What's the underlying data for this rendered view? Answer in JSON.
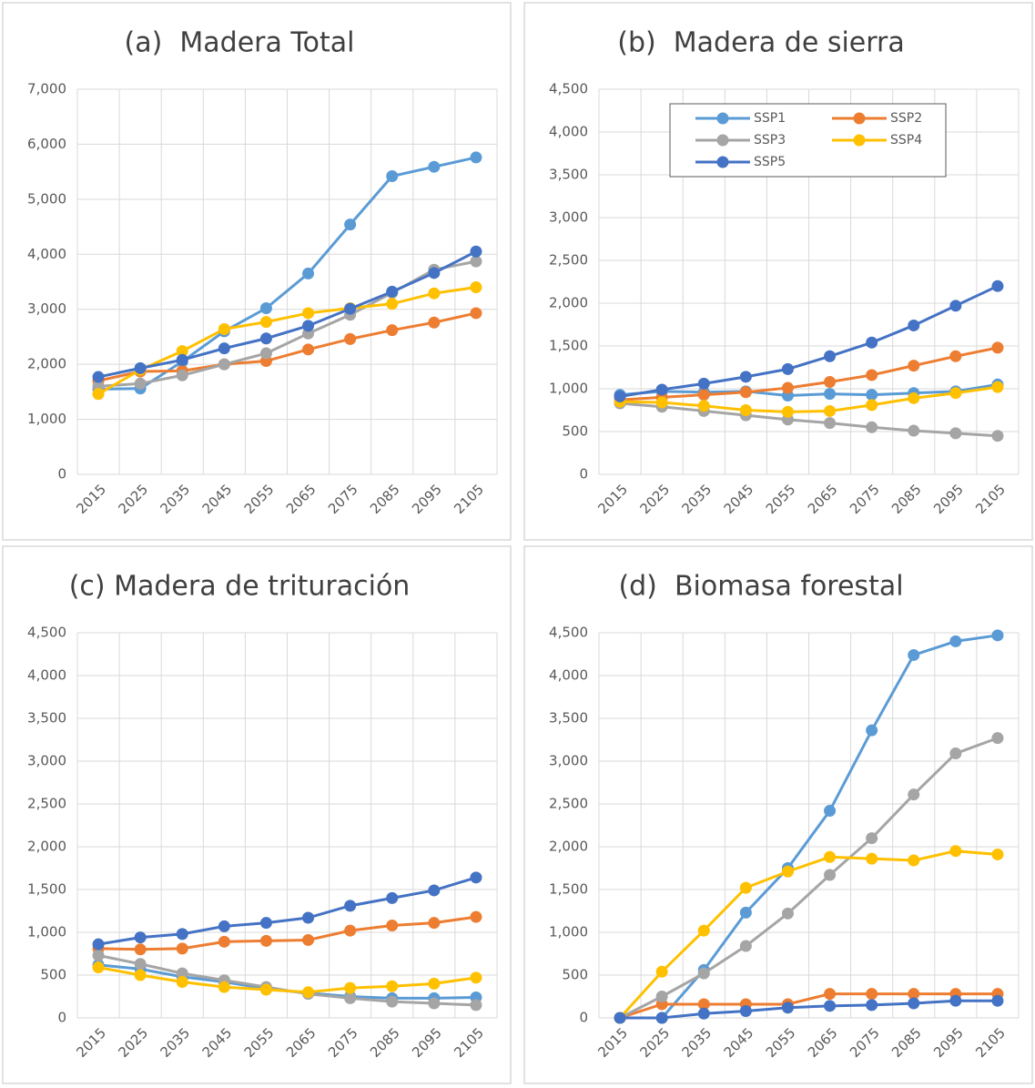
{
  "chart_data": [
    {
      "type": "line",
      "title": "(a)  Madera Total",
      "categories": [
        "2015",
        "2025",
        "2035",
        "2045",
        "2055",
        "2065",
        "2075",
        "2085",
        "2095",
        "2105"
      ],
      "ylim": [
        0,
        7000
      ],
      "yticks": [
        0,
        {
          "value": 1000,
          "label": "1,000"
        },
        {
          "value": 2000,
          "label": "2,000"
        },
        {
          "value": 3000,
          "label": "3,000"
        },
        {
          "value": 4000,
          "label": "4,000"
        },
        {
          "value": 5000,
          "label": "5,000"
        },
        {
          "value": 6000,
          "label": "6,000"
        },
        {
          "value": 7000,
          "label": "7,000"
        }
      ],
      "grid": true,
      "series": [
        {
          "color": "#5b9bd5",
          "values": [
            1550,
            1560,
            2050,
            2600,
            3020,
            3650,
            4540,
            5420,
            5590,
            5760
          ]
        },
        {
          "color": "#ed7d31",
          "values": [
            1700,
            1870,
            1880,
            2000,
            2060,
            2270,
            2460,
            2620,
            2760,
            2930
          ]
        },
        {
          "color": "#a5a5a5",
          "values": [
            1600,
            1650,
            1800,
            2000,
            2200,
            2560,
            2900,
            3300,
            3720,
            3870
          ]
        },
        {
          "color": "#ffc000",
          "values": [
            1460,
            1900,
            2240,
            2640,
            2770,
            2930,
            3020,
            3100,
            3290,
            3400
          ]
        },
        {
          "color": "#4472c4",
          "values": [
            1770,
            1930,
            2080,
            2290,
            2470,
            2700,
            3010,
            3320,
            3660,
            4050
          ]
        }
      ]
    },
    {
      "type": "line",
      "title": "(b)  Madera de sierra",
      "categories": [
        "2015",
        "2025",
        "2035",
        "2045",
        "2055",
        "2065",
        "2075",
        "2085",
        "2095",
        "2105"
      ],
      "ylim": [
        0,
        4500
      ],
      "yticks": [
        0,
        500,
        {
          "value": 1000,
          "label": "1,000"
        },
        {
          "value": 1500,
          "label": "1,500"
        },
        {
          "value": 2000,
          "label": "2,000"
        },
        {
          "value": 2500,
          "label": "2,500"
        },
        {
          "value": 3000,
          "label": "3,000"
        },
        {
          "value": 3500,
          "label": "3,500"
        },
        {
          "value": 4000,
          "label": "4,000"
        },
        {
          "value": 4500,
          "label": "4,500"
        }
      ],
      "grid": true,
      "legend": "top",
      "series": [
        {
          "name": "SSP1",
          "color": "#5b9bd5",
          "values": [
            930,
            970,
            960,
            970,
            920,
            940,
            930,
            950,
            970,
            1050
          ]
        },
        {
          "name": "SSP2",
          "color": "#ed7d31",
          "values": [
            870,
            900,
            930,
            960,
            1010,
            1080,
            1160,
            1270,
            1380,
            1480
          ]
        },
        {
          "name": "SSP3",
          "color": "#a5a5a5",
          "values": [
            830,
            790,
            740,
            690,
            640,
            600,
            550,
            510,
            480,
            450
          ]
        },
        {
          "name": "SSP4",
          "color": "#ffc000",
          "values": [
            850,
            840,
            800,
            750,
            730,
            740,
            810,
            890,
            950,
            1020
          ]
        },
        {
          "name": "SSP5",
          "color": "#4472c4",
          "values": [
            910,
            990,
            1060,
            1140,
            1230,
            1380,
            1540,
            1740,
            1970,
            2200
          ]
        }
      ]
    },
    {
      "type": "line",
      "title": "(c) Madera de trituración",
      "categories": [
        "2015",
        "2025",
        "2035",
        "2045",
        "2055",
        "2065",
        "2075",
        "2085",
        "2095",
        "2105"
      ],
      "ylim": [
        0,
        4500
      ],
      "yticks": [
        0,
        500,
        {
          "value": 1000,
          "label": "1,000"
        },
        {
          "value": 1500,
          "label": "1,500"
        },
        {
          "value": 2000,
          "label": "2,000"
        },
        {
          "value": 2500,
          "label": "2,500"
        },
        {
          "value": 3000,
          "label": "3,000"
        },
        {
          "value": 3500,
          "label": "3,500"
        },
        {
          "value": 4000,
          "label": "4,000"
        },
        {
          "value": 4500,
          "label": "4,500"
        }
      ],
      "grid": true,
      "series": [
        {
          "color": "#5b9bd5",
          "values": [
            620,
            570,
            480,
            420,
            340,
            290,
            250,
            230,
            230,
            240
          ]
        },
        {
          "color": "#ed7d31",
          "values": [
            810,
            800,
            810,
            890,
            900,
            910,
            1020,
            1080,
            1110,
            1180
          ]
        },
        {
          "color": "#a5a5a5",
          "values": [
            730,
            630,
            520,
            440,
            360,
            280,
            230,
            190,
            170,
            150
          ]
        },
        {
          "color": "#ffc000",
          "values": [
            590,
            500,
            420,
            360,
            330,
            300,
            350,
            370,
            400,
            470
          ]
        },
        {
          "color": "#4472c4",
          "values": [
            860,
            940,
            980,
            1070,
            1110,
            1170,
            1310,
            1400,
            1490,
            1640
          ]
        }
      ]
    },
    {
      "type": "line",
      "title": "(d)  Biomasa forestal",
      "categories": [
        "2015",
        "2025",
        "2035",
        "2045",
        "2055",
        "2065",
        "2075",
        "2085",
        "2095",
        "2105"
      ],
      "ylim": [
        0,
        4500
      ],
      "yticks": [
        0,
        500,
        {
          "value": 1000,
          "label": "1,000"
        },
        {
          "value": 1500,
          "label": "1,500"
        },
        {
          "value": 2000,
          "label": "2,000"
        },
        {
          "value": 2500,
          "label": "2,500"
        },
        {
          "value": 3000,
          "label": "3,000"
        },
        {
          "value": 3500,
          "label": "3,500"
        },
        {
          "value": 4000,
          "label": "4,000"
        },
        {
          "value": 4500,
          "label": "4,500"
        }
      ],
      "grid": true,
      "series": [
        {
          "color": "#5b9bd5",
          "values": [
            0,
            0,
            560,
            1230,
            1750,
            2420,
            3360,
            4240,
            4400,
            4470
          ]
        },
        {
          "color": "#ed7d31",
          "values": [
            0,
            160,
            160,
            160,
            160,
            280,
            280,
            280,
            280,
            280
          ]
        },
        {
          "color": "#a5a5a5",
          "values": [
            0,
            250,
            520,
            840,
            1220,
            1670,
            2100,
            2610,
            3090,
            3270
          ]
        },
        {
          "color": "#ffc000",
          "values": [
            0,
            540,
            1020,
            1520,
            1710,
            1880,
            1860,
            1840,
            1950,
            1910
          ]
        },
        {
          "color": "#4472c4",
          "values": [
            0,
            0,
            50,
            80,
            120,
            140,
            150,
            170,
            200,
            200
          ]
        }
      ]
    }
  ]
}
